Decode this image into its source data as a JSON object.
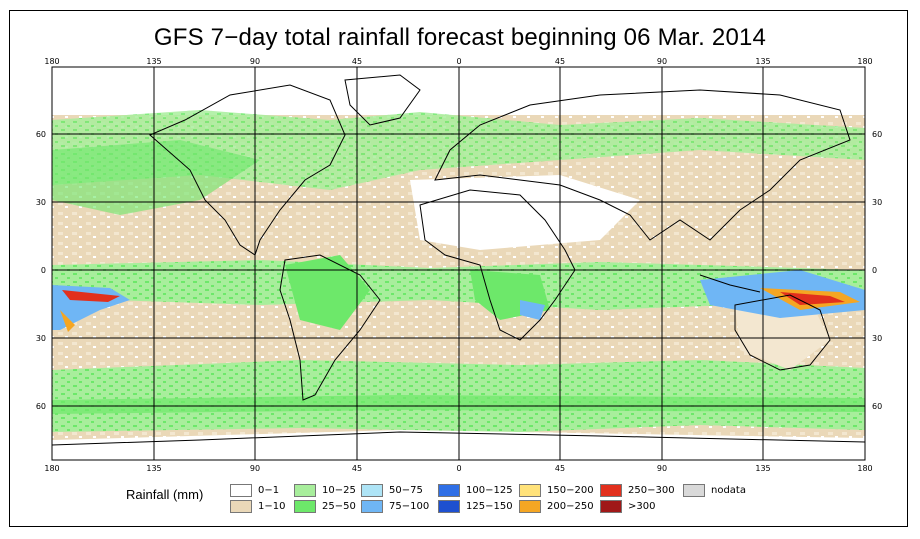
{
  "title": "GFS 7−day total rainfall forecast beginning 06 Mar. 2014",
  "lon_ticks": [
    "180",
    "135",
    "90",
    "45",
    "0",
    "45",
    "90",
    "135",
    "180"
  ],
  "lat_ticks": [
    "60",
    "30",
    "0",
    "30",
    "60"
  ],
  "legend": {
    "title": "Rainfall (mm)",
    "items": [
      {
        "label": "0−1",
        "color": "#ffffff"
      },
      {
        "label": "1−10",
        "color": "#ead8b8"
      },
      {
        "label": "10−25",
        "color": "#a8ee9c"
      },
      {
        "label": "25−50",
        "color": "#6de86a"
      },
      {
        "label": "50−75",
        "color": "#aee4f6"
      },
      {
        "label": "75−100",
        "color": "#6fb6f5"
      },
      {
        "label": "100−125",
        "color": "#2f6fe6"
      },
      {
        "label": "125−150",
        "color": "#1e50d0"
      },
      {
        "label": "150−200",
        "color": "#ffe27a"
      },
      {
        "label": "200−250",
        "color": "#f5a623"
      },
      {
        "label": "250−300",
        "color": "#e2301d"
      },
      {
        "label": ">300",
        "color": "#a01818"
      },
      {
        "label": "nodata",
        "color": "#d9d9d9"
      }
    ]
  }
}
